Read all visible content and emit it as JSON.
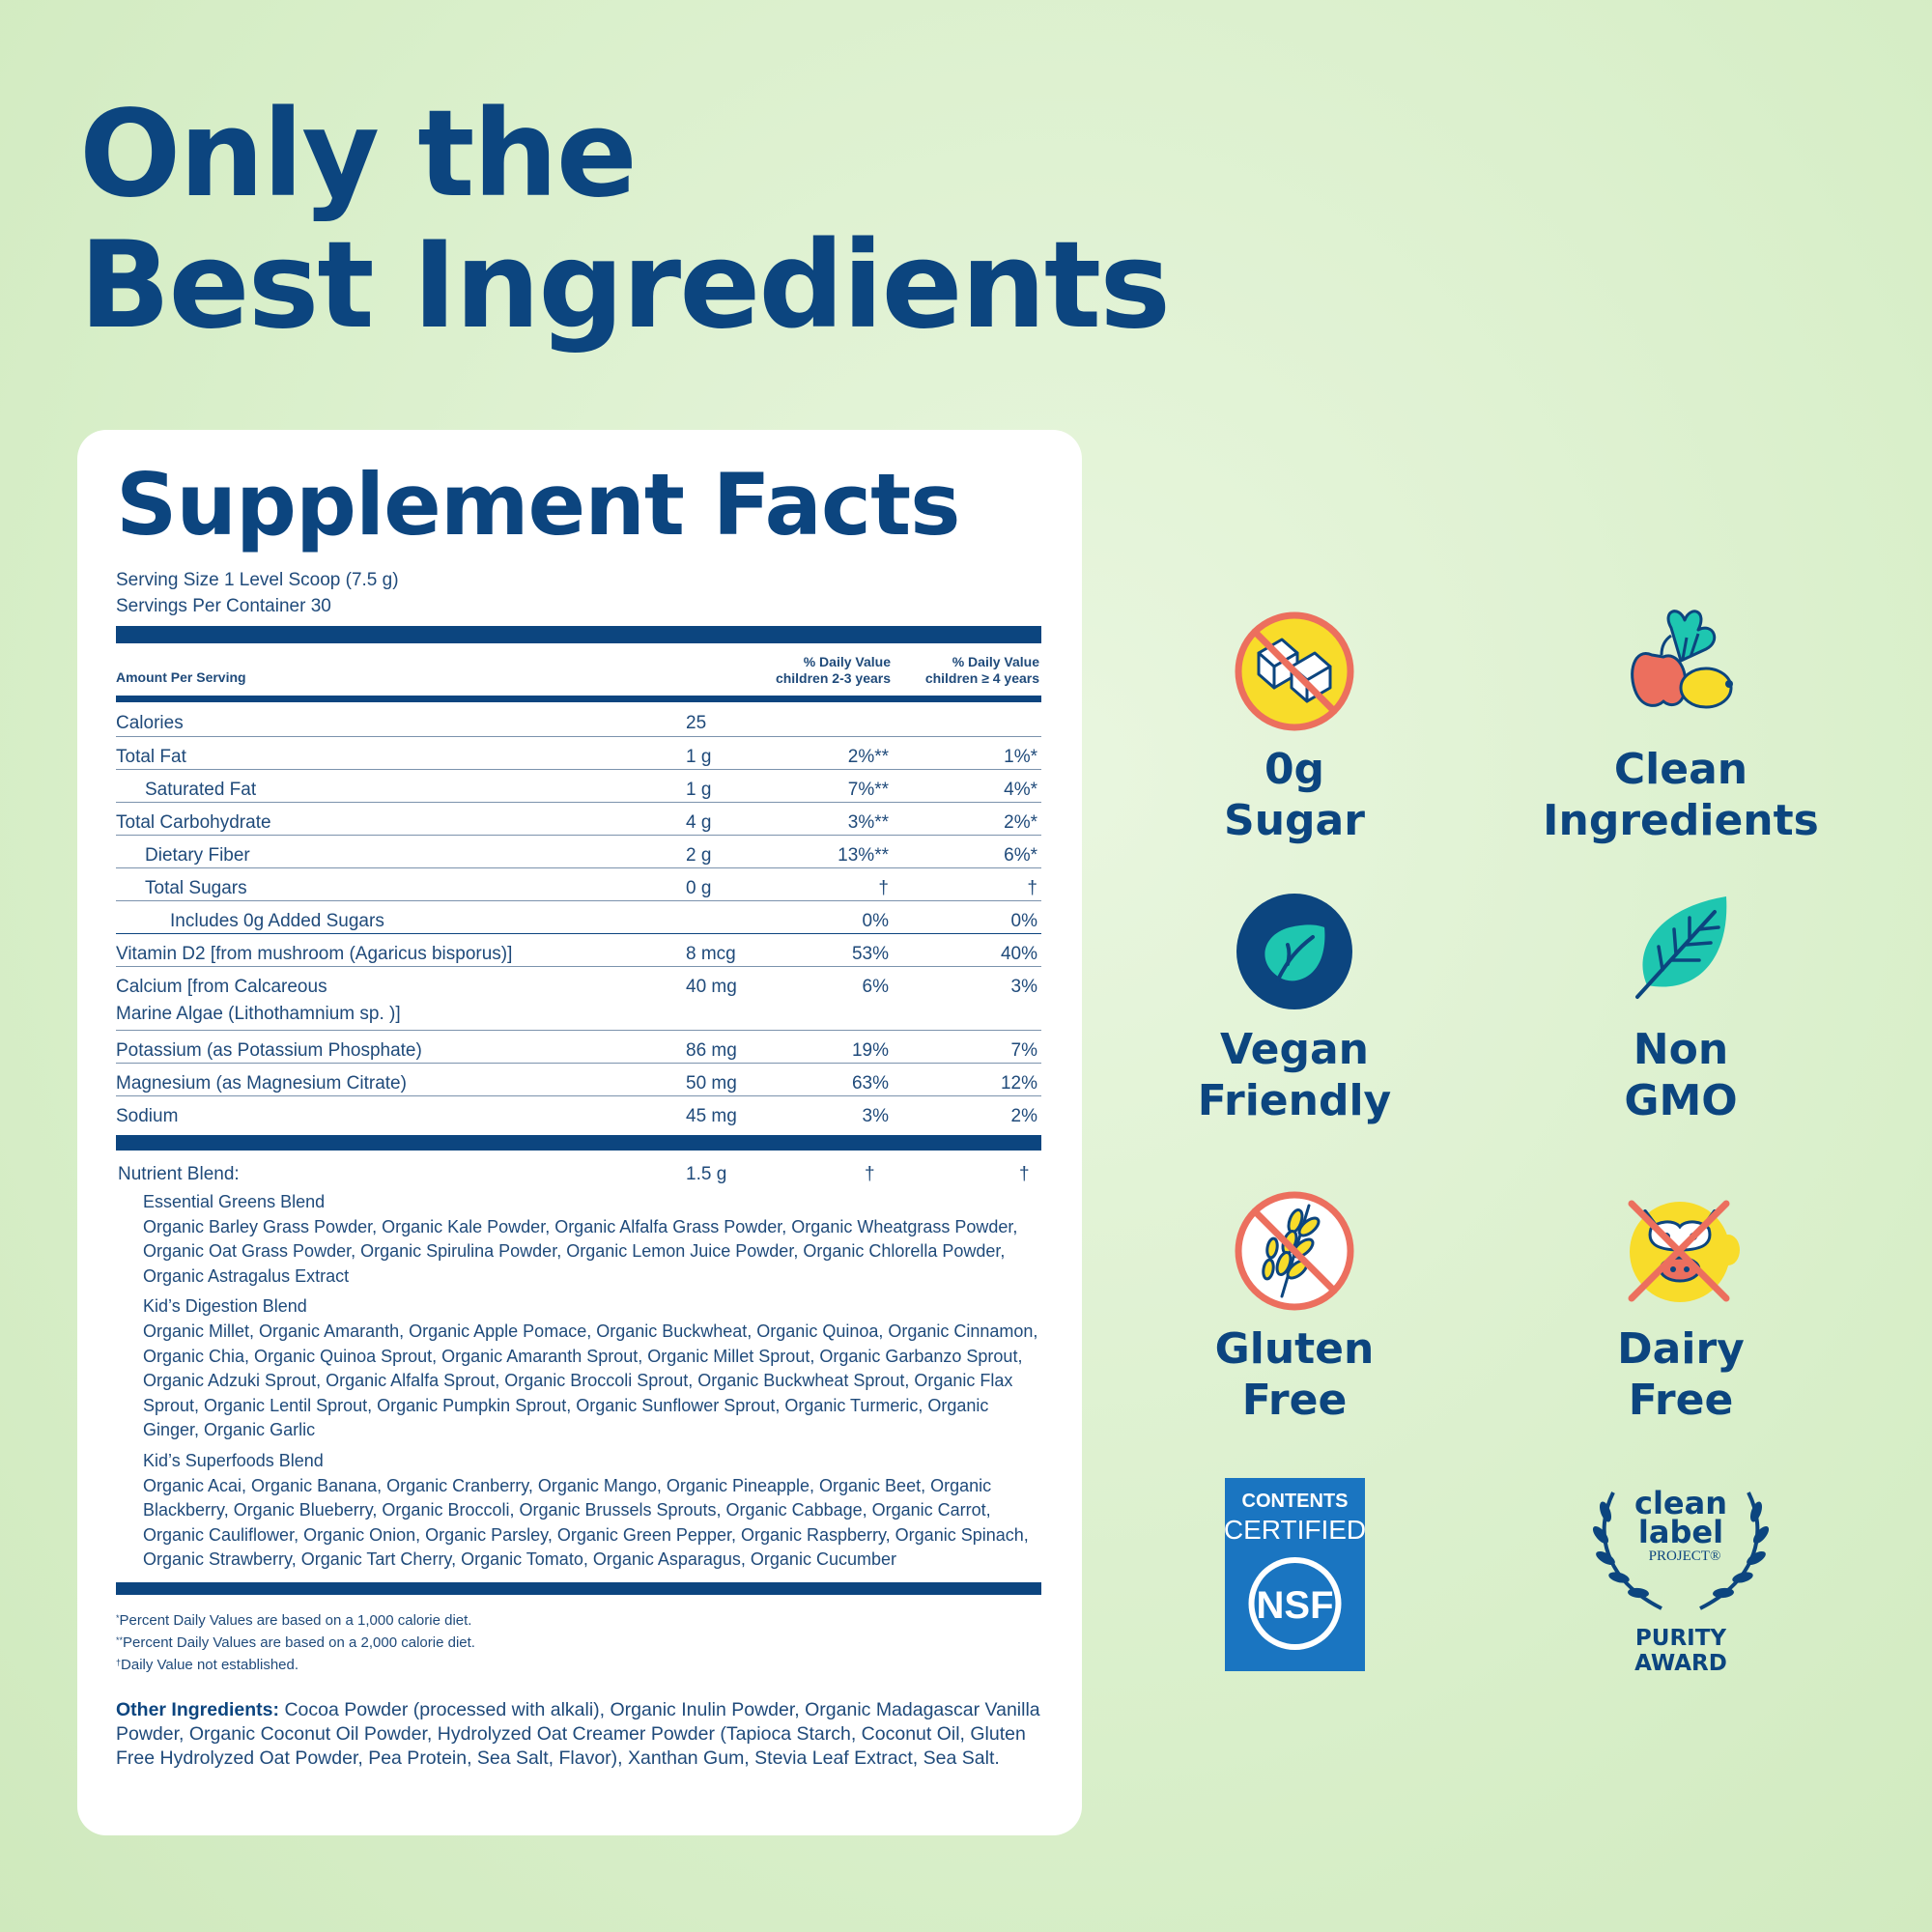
{
  "headline": {
    "line1": "Only the",
    "line2": "Best Ingredients"
  },
  "panel": {
    "title": "Supplement Facts",
    "serving_size": "Serving Size 1 Level Scoop (7.5 g)",
    "servings_per_container": "Servings Per Container 30",
    "header": {
      "amount": "Amount Per Serving",
      "dv1_line1": "% Daily Value",
      "dv1_line2": "children 2-3 years",
      "dv2_line1": "%  Daily Value",
      "dv2_line2": "children ≥ 4 years"
    },
    "nutrients": [
      {
        "name": "Calories",
        "amount": "25",
        "dv1": "",
        "dv2": ""
      },
      {
        "name": "Total Fat",
        "amount": "1 g",
        "dv1": "2%**",
        "dv2": "1%*"
      },
      {
        "name": "Saturated Fat",
        "amount": "1 g",
        "dv1": "7%**",
        "dv2": "4%*"
      },
      {
        "name": "Total Carbohydrate",
        "amount": "4 g",
        "dv1": "3%**",
        "dv2": "2%*"
      },
      {
        "name": "Dietary Fiber",
        "amount": "2 g",
        "dv1": "13%**",
        "dv2": "6%*"
      },
      {
        "name": "Total Sugars",
        "amount": "0 g",
        "dv1": "†",
        "dv2": "†"
      },
      {
        "name": "Includes 0g Added Sugars",
        "amount": "",
        "dv1": "0%",
        "dv2": "0%"
      },
      {
        "name": "Vitamin D2 [from mushroom (Agaricus bisporus)]",
        "amount": "8 mcg",
        "dv1": "53%",
        "dv2": "40%"
      },
      {
        "name": "Calcium [from Calcareous",
        "name2": "Marine Algae (Lithothamnium sp. )]",
        "amount": "40 mg",
        "dv1": "6%",
        "dv2": "3%"
      },
      {
        "name": "Potassium (as Potassium Phosphate)",
        "amount": "86 mg",
        "dv1": "19%",
        "dv2": "7%"
      },
      {
        "name": "Magnesium (as Magnesium Citrate)",
        "amount": "50 mg",
        "dv1": "63%",
        "dv2": "12%"
      },
      {
        "name": "Sodium",
        "amount": "45 mg",
        "dv1": "3%",
        "dv2": "2%"
      }
    ],
    "blend": {
      "title": "Nutrient Blend:",
      "amount": "1.5 g",
      "dv1": "†",
      "dv2": "†",
      "groups": [
        {
          "name": "Essential Greens Blend",
          "ingredients": "Organic Barley Grass Powder, Organic Kale Powder, Organic Alfalfa Grass Powder, Organic Wheatgrass Powder, Organic Oat Grass Powder, Organic Spirulina Powder, Organic Lemon Juice Powder, Organic Chlorella Powder, Organic Astragalus Extract"
        },
        {
          "name": "Kid’s Digestion Blend",
          "ingredients": "Organic Millet, Organic Amaranth, Organic Apple Pomace, Organic Buckwheat, Organic Quinoa, Organic Cinnamon, Organic Chia, Organic Quinoa Sprout, Organic Amaranth Sprout, Organic Millet Sprout, Organic Garbanzo Sprout, Organic Adzuki Sprout, Organic Alfalfa Sprout, Organic Broccoli Sprout, Organic Buckwheat Sprout, Organic Flax Sprout, Organic Lentil Sprout, Organic Pumpkin Sprout, Organic Sunflower Sprout, Organic Turmeric, Organic Ginger, Organic Garlic"
        },
        {
          "name": "Kid’s Superfoods Blend",
          "ingredients": "Organic Acai, Organic Banana, Organic Cranberry, Organic Mango, Organic Pineapple, Organic Beet, Organic Blackberry, Organic Blueberry, Organic Broccoli, Organic Brussels Sprouts, Organic Cabbage, Organic Carrot, Organic Cauliflower, Organic Onion, Organic Parsley, Organic Green Pepper, Organic Raspberry, Organic Spinach, Organic Strawberry, Organic Tart Cherry, Organic Tomato, Organic Asparagus, Organic Cucumber"
        }
      ]
    },
    "footnotes": [
      {
        "mark": "*",
        "text": "Percent Daily Values are based on a 1,000 calorie diet."
      },
      {
        "mark": "**",
        "text": "Percent Daily Values are based on a 2,000 calorie diet."
      },
      {
        "mark": "†",
        "text": "Daily Value not established."
      }
    ],
    "other_ingredients": {
      "label": "Other Ingredients:",
      "text": " Cocoa Powder (processed with alkali), Organic Inulin Powder, Organic Madagascar Vanilla Powder, Organic Coconut Oil Powder, Hydrolyzed Oat Creamer Powder (Tapioca Starch, Coconut Oil, Gluten Free Hydrolyzed Oat Powder, Pea Protein, Sea Salt, Flavor), Xanthan Gum, Stevia Leaf Extract, Sea Salt."
    }
  },
  "badges": [
    {
      "line1": "0g",
      "line2": "Sugar",
      "icon": "no-sugar-icon"
    },
    {
      "line1": "Clean",
      "line2": "Ingredients",
      "icon": "produce-icon"
    },
    {
      "line1": "Vegan",
      "line2": "Friendly",
      "icon": "vegan-leaf-icon"
    },
    {
      "line1": "Non",
      "line2": "GMO",
      "icon": "leaf-icon"
    },
    {
      "line1": "Gluten",
      "line2": "Free",
      "icon": "no-wheat-icon"
    },
    {
      "line1": "Dairy",
      "line2": "Free",
      "icon": "no-dairy-icon"
    }
  ],
  "certifications": {
    "nsf": {
      "line1": "CONTENTS",
      "line2": "CERTIFIED",
      "logo": "NSF"
    },
    "clean_label": {
      "line1": "clean",
      "line2": "label",
      "line3": "PROJECT®",
      "award1": "PURITY",
      "award2": "AWARD"
    }
  },
  "colors": {
    "navy": "#0c457f",
    "background": "#dcefcf",
    "nsf_blue": "#1a75c1",
    "teal": "#1ec6b0",
    "yellow": "#f8dc2a",
    "coral": "#ec6f5e"
  }
}
